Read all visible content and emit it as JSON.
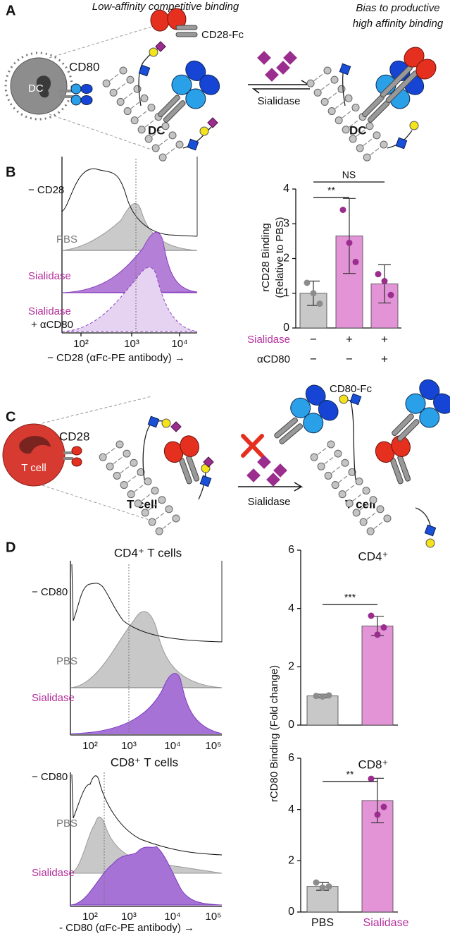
{
  "panel_a": {
    "label": "A",
    "left_title": "Low-affinity competitive binding",
    "right_title": [
      "Bias to productive",
      "high affinity binding"
    ],
    "cell": "DC",
    "receptor": "CD80",
    "ligand": "CD28-Fc",
    "enzyme": "Sialidase",
    "cell_left": "DC",
    "cell_right": "DC"
  },
  "panel_b": {
    "label": "B",
    "histogram": {
      "rows": [
        "− CD28",
        "PBS",
        "Sialidase",
        "Sialidase",
        "+ αCD80"
      ],
      "xticks": [
        "10²",
        "10³",
        "10⁴"
      ],
      "xlabel": "− CD28 (αFc-PE antibody) →"
    },
    "conditions": [
      {
        "name": "Sialidase",
        "signs": [
          "−",
          "+",
          "+"
        ]
      },
      {
        "name": "αCD80",
        "signs": [
          "−",
          "−",
          "+"
        ]
      }
    ]
  },
  "panel_c": {
    "label": "C",
    "cell": "T cell",
    "receptor": "CD28",
    "ligand": "CD80-Fc",
    "enzyme": "Sialidase",
    "cell_left": "T cell",
    "cell_right": "T cell"
  },
  "panel_d": {
    "label": "D",
    "bar_ylabel": "rCD80 Binding (Fold change)",
    "histograms": [
      {
        "title": "CD4⁺ T cells",
        "rows": [
          "− CD80",
          "PBS",
          "Sialidase"
        ],
        "xticks": [
          "10²",
          "10³",
          "10⁴",
          "10⁵"
        ]
      },
      {
        "title": "CD8⁺ T cells",
        "rows": [
          "− CD80",
          "PBS",
          "Sialidase"
        ],
        "xticks": [
          "10²",
          "10³",
          "10⁴",
          "10⁵"
        ]
      }
    ],
    "xlabel": "- CD80 (αFc-PE antibody) →"
  },
  "chart_data": [
    {
      "type": "bar",
      "ylabel": [
        "rCD28 Binding",
        "(Relative to PBS)"
      ],
      "categories": [
        null,
        null,
        null
      ],
      "values": [
        1.0,
        2.65,
        1.27
      ],
      "errors": [
        0.35,
        1.08,
        0.55
      ],
      "points": [
        [
          1.3,
          1.0,
          0.7
        ],
        [
          3.4,
          2.45,
          1.9
        ],
        [
          1.55,
          1.35,
          0.95
        ]
      ],
      "colors": [
        "#c8c8c8",
        "#e294d6",
        "#e294d6"
      ],
      "point_colors": [
        "#8c8c8c",
        "#9a2d8e",
        "#9a2d8e"
      ],
      "ylim": [
        0,
        4
      ],
      "yticks": [
        0,
        1,
        2,
        3,
        4
      ],
      "significance": [
        {
          "label": "**",
          "pair": [
            0,
            1
          ]
        },
        {
          "label": "NS",
          "pair": [
            0,
            2
          ]
        }
      ]
    },
    {
      "type": "bar",
      "title": "CD4⁺",
      "categories": [
        null,
        null
      ],
      "values": [
        1.0,
        3.4
      ],
      "errors": [
        0.06,
        0.33
      ],
      "points": [
        [
          1.0,
          0.98,
          1.02
        ],
        [
          3.75,
          3.1,
          3.35
        ]
      ],
      "colors": [
        "#c8c8c8",
        "#e294d6"
      ],
      "point_colors": [
        "#8c8c8c",
        "#9a2d8e"
      ],
      "ylim": [
        0,
        6
      ],
      "yticks": [
        0,
        2,
        4,
        6
      ],
      "significance": [
        {
          "label": "***",
          "pair": [
            0,
            1
          ]
        }
      ]
    },
    {
      "type": "bar",
      "title": "CD8⁺",
      "categories": [
        "PBS",
        "Sialidase"
      ],
      "values": [
        1.0,
        4.35
      ],
      "errors": [
        0.15,
        0.87
      ],
      "points": [
        [
          1.15,
          0.95,
          1.0
        ],
        [
          5.2,
          3.8,
          4.1
        ]
      ],
      "colors": [
        "#c8c8c8",
        "#e294d6"
      ],
      "point_colors": [
        "#8c8c8c",
        "#9a2d8e"
      ],
      "ylim": [
        0,
        6
      ],
      "yticks": [
        0,
        2,
        4,
        6
      ],
      "significance": [
        {
          "label": "**",
          "pair": [
            0,
            1
          ]
        }
      ]
    }
  ]
}
